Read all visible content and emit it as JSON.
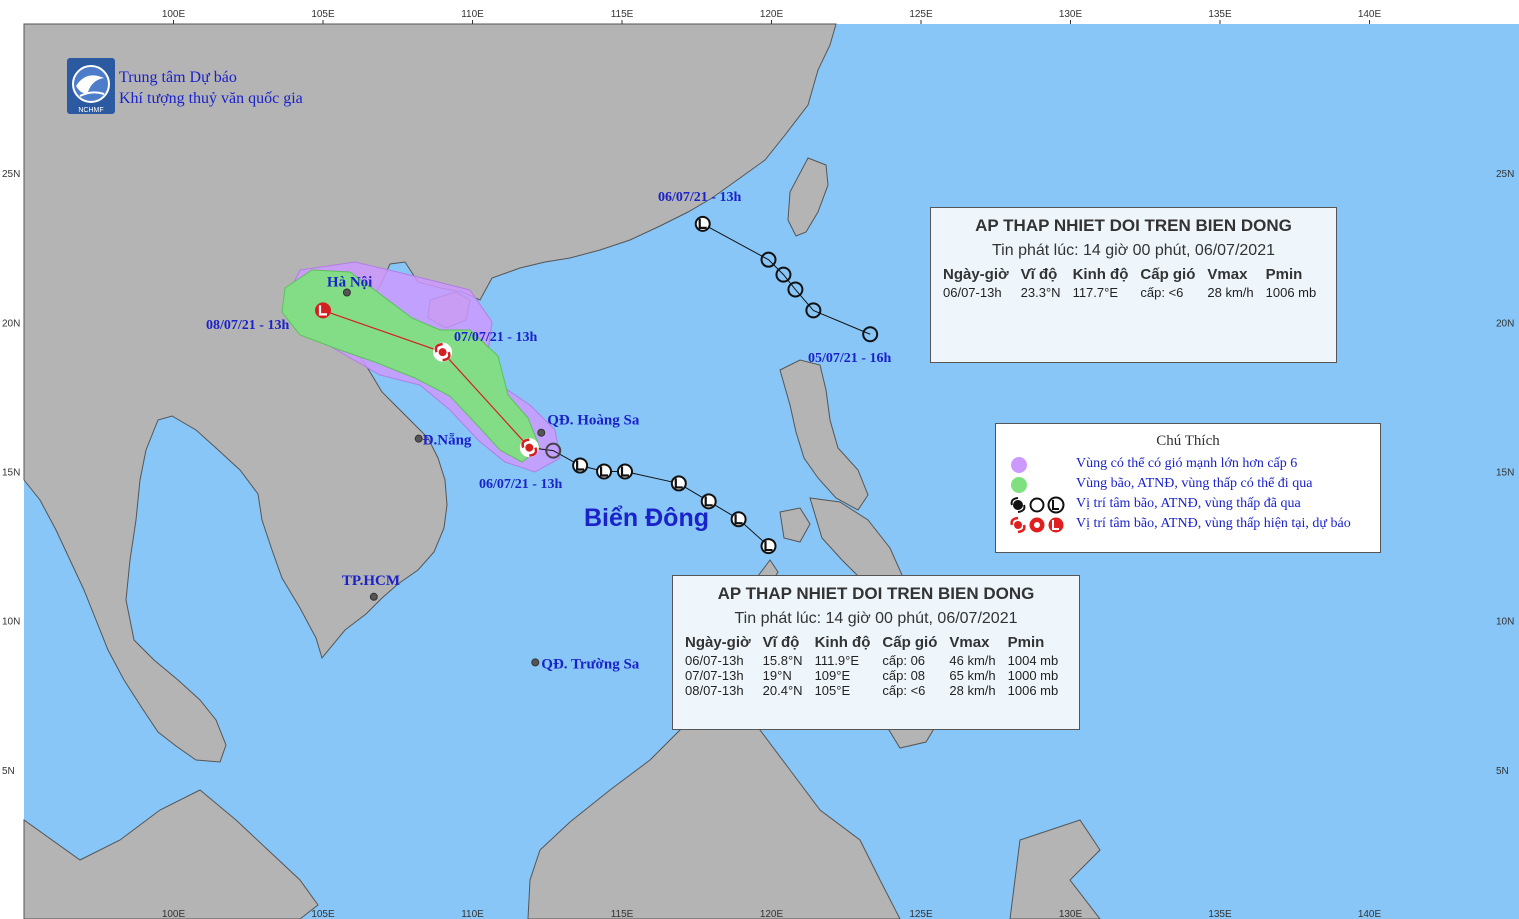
{
  "map": {
    "lon_ticks": [
      "100E",
      "105E",
      "110E",
      "115E",
      "120E",
      "125E",
      "130E",
      "135E",
      "140E"
    ],
    "lat_ticks": [
      "25N",
      "20N",
      "15N",
      "10N",
      "5N"
    ],
    "colors": {
      "sea": "#88c6f8",
      "land": "#b4b4b4",
      "track": "#111111",
      "forecast_track": "#d42020",
      "probable_area": "#cc99ff",
      "storm_area": "#7fe07f",
      "label": "#1a22c8"
    }
  },
  "logo": {
    "name": "NCHMF",
    "line1": "Trung tâm Dự báo",
    "line2": "Khí tượng thuỷ văn quốc gia"
  },
  "places": [
    {
      "id": "ha-noi",
      "label": "Hà Nội",
      "lon": 105.8,
      "lat": 21.0
    },
    {
      "id": "da-nang",
      "label": "Đ.Nẵng",
      "lon": 108.2,
      "lat": 16.1
    },
    {
      "id": "tp-hcm",
      "label": "TP.HCM",
      "lon": 106.7,
      "lat": 10.8
    },
    {
      "id": "hoang-sa",
      "label": "QĐ. Hoàng Sa",
      "lon": 112.3,
      "lat": 16.3
    },
    {
      "id": "truong-sa",
      "label": "QĐ. Trường Sa",
      "lon": 112.1,
      "lat": 8.6
    }
  ],
  "sea_label": "Biển Đông",
  "track_labels": {
    "north_start": "05/07/21 - 16h",
    "north_current": "06/07/21 - 13h",
    "south_current": "06/07/21 - 13h",
    "forecast_24h": "07/07/21 - 13h",
    "forecast_48h": "08/07/21 - 13h"
  },
  "north_track": [
    {
      "lon": 123.3,
      "lat": 19.6
    },
    {
      "lon": 121.4,
      "lat": 20.4
    },
    {
      "lon": 120.8,
      "lat": 21.1
    },
    {
      "lon": 120.4,
      "lat": 21.6
    },
    {
      "lon": 119.9,
      "lat": 22.1
    },
    {
      "lon": 117.7,
      "lat": 23.3
    }
  ],
  "south_track": [
    {
      "lon": 119.9,
      "lat": 12.5
    },
    {
      "lon": 118.9,
      "lat": 13.4
    },
    {
      "lon": 117.9,
      "lat": 14.0
    },
    {
      "lon": 116.9,
      "lat": 14.6
    },
    {
      "lon": 115.1,
      "lat": 15.0
    },
    {
      "lon": 114.4,
      "lat": 15.0
    },
    {
      "lon": 113.6,
      "lat": 15.2
    },
    {
      "lon": 112.7,
      "lat": 15.7
    },
    {
      "lon": 111.9,
      "lat": 15.8
    }
  ],
  "forecast_track": [
    {
      "lon": 111.9,
      "lat": 15.8,
      "symbol": "storm"
    },
    {
      "lon": 109.0,
      "lat": 19.0,
      "symbol": "storm"
    },
    {
      "lon": 105.0,
      "lat": 20.4,
      "symbol": "low"
    }
  ],
  "info_north": {
    "title": "AP THAP NHIET DOI TREN BIEN DONG",
    "issued": "Tin phát lúc: 14 giờ 00 phút, 06/07/2021",
    "headers": [
      "Ngày-giờ",
      "Vĩ độ",
      "Kinh độ",
      "Cấp gió",
      "Vmax",
      "Pmin"
    ],
    "rows": [
      [
        "06/07-13h",
        "23.3°N",
        "117.7°E",
        "cấp: <6",
        "28 km/h",
        "1006 mb"
      ]
    ]
  },
  "info_south": {
    "title": "AP THAP NHIET DOI TREN BIEN DONG",
    "issued": "Tin phát lúc: 14 giờ 00 phút, 06/07/2021",
    "headers": [
      "Ngày-giờ",
      "Vĩ độ",
      "Kinh độ",
      "Cấp gió",
      "Vmax",
      "Pmin"
    ],
    "rows": [
      [
        "06/07-13h",
        "15.8°N",
        "111.9°E",
        "cấp: 06",
        "46 km/h",
        "1004 mb"
      ],
      [
        "07/07-13h",
        "19°N",
        "109°E",
        "cấp: 08",
        "65 km/h",
        "1000 mb"
      ],
      [
        "08/07-13h",
        "20.4°N",
        "105°E",
        "cấp: <6",
        "28 km/h",
        "1006 mb"
      ]
    ]
  },
  "legend": {
    "title": "Chú Thích",
    "items": [
      {
        "icon": "purple-dot-icon",
        "text": "Vùng có thể có gió mạnh lớn hơn cấp 6"
      },
      {
        "icon": "green-dot-icon",
        "text": "Vùng bão, ATNĐ, vùng thấp có thể đi qua"
      },
      {
        "icon": "past-position-icons",
        "text": "Vị trí tâm bão, ATNĐ, vùng thấp đã qua"
      },
      {
        "icon": "current-position-icons",
        "text": "Vị trí tâm bão, ATNĐ, vùng thấp hiện tại, dự báo"
      }
    ]
  }
}
